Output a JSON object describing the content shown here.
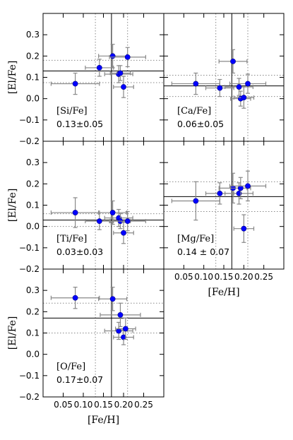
{
  "chart_data": {
    "type": "scatter",
    "xlabel": "[Fe/H]",
    "ylabel": "[El/Fe]",
    "xlim": [
      0.0,
      0.3
    ],
    "ylim": [
      -0.2,
      0.4
    ],
    "xticks": [
      0.05,
      0.1,
      0.15,
      0.2,
      0.25
    ],
    "xtick_labels": [
      "0.05",
      "0.10",
      "0.15",
      "0.20",
      "0.25"
    ],
    "yticks": [
      -0.2,
      -0.1,
      0.0,
      0.1,
      0.2,
      0.3
    ],
    "ytick_labels": [
      "−0.2",
      "−0.1",
      "0.0",
      "0.1",
      "0.2",
      "0.3"
    ],
    "panel_style": {
      "point_color": "#0000ff",
      "mean_line_color": "#000000",
      "dotted_line_color": "#888888",
      "errorbar_color": "#888888"
    },
    "panels": [
      {
        "element": "[Si/Fe]",
        "value_text": "0.13±0.05",
        "feh_mean": 0.17,
        "feh_dotted": [
          0.13,
          0.21
        ],
        "elfe_mean": 0.13,
        "elfe_dotted": [
          0.075,
          0.18
        ],
        "points": [
          {
            "x": 0.08,
            "y": 0.07,
            "xerr": 0.06,
            "yerr": 0.05
          },
          {
            "x": 0.14,
            "y": 0.145,
            "xerr": 0.035,
            "yerr": 0.04
          },
          {
            "x": 0.173,
            "y": 0.2,
            "xerr": 0.035,
            "yerr": 0.055
          },
          {
            "x": 0.188,
            "y": 0.115,
            "xerr": 0.035,
            "yerr": 0.04
          },
          {
            "x": 0.192,
            "y": 0.12,
            "xerr": 0.025,
            "yerr": 0.035
          },
          {
            "x": 0.2,
            "y": 0.055,
            "xerr": 0.025,
            "yerr": 0.05
          },
          {
            "x": 0.21,
            "y": 0.195,
            "xerr": 0.045,
            "yerr": 0.045
          }
        ]
      },
      {
        "element": "[Ca/Fe]",
        "value_text": "0.06±0.05",
        "feh_mean": 0.17,
        "feh_dotted": [
          0.13,
          0.21
        ],
        "elfe_mean": 0.06,
        "elfe_dotted": [
          0.01,
          0.11
        ],
        "points": [
          {
            "x": 0.08,
            "y": 0.07,
            "xerr": 0.06,
            "yerr": 0.05
          },
          {
            "x": 0.14,
            "y": 0.05,
            "xerr": 0.035,
            "yerr": 0.04
          },
          {
            "x": 0.173,
            "y": 0.175,
            "xerr": 0.035,
            "yerr": 0.055
          },
          {
            "x": 0.188,
            "y": 0.055,
            "xerr": 0.035,
            "yerr": 0.04
          },
          {
            "x": 0.192,
            "y": 0.0,
            "xerr": 0.025,
            "yerr": 0.035
          },
          {
            "x": 0.2,
            "y": 0.005,
            "xerr": 0.025,
            "yerr": 0.05
          },
          {
            "x": 0.21,
            "y": 0.07,
            "xerr": 0.045,
            "yerr": 0.045
          }
        ]
      },
      {
        "element": "[Ti/Fe]",
        "value_text": "0.03±0.03",
        "feh_mean": 0.17,
        "feh_dotted": [
          0.13,
          0.21
        ],
        "elfe_mean": 0.03,
        "elfe_dotted": [
          0.0,
          0.06
        ],
        "points": [
          {
            "x": 0.08,
            "y": 0.065,
            "xerr": 0.06,
            "yerr": 0.07
          },
          {
            "x": 0.14,
            "y": 0.025,
            "xerr": 0.035,
            "yerr": 0.04
          },
          {
            "x": 0.173,
            "y": 0.065,
            "xerr": 0.035,
            "yerr": 0.055
          },
          {
            "x": 0.188,
            "y": 0.04,
            "xerr": 0.035,
            "yerr": 0.04
          },
          {
            "x": 0.192,
            "y": 0.025,
            "xerr": 0.025,
            "yerr": 0.035
          },
          {
            "x": 0.2,
            "y": -0.03,
            "xerr": 0.025,
            "yerr": 0.05
          },
          {
            "x": 0.21,
            "y": 0.025,
            "xerr": 0.045,
            "yerr": 0.045
          }
        ]
      },
      {
        "element": "[Mg/Fe]",
        "value_text": "0.14 ± 0.07",
        "feh_mean": 0.17,
        "feh_dotted": [
          0.13,
          0.21
        ],
        "elfe_mean": 0.14,
        "elfe_dotted": [
          0.07,
          0.21
        ],
        "points": [
          {
            "x": 0.08,
            "y": 0.12,
            "xerr": 0.06,
            "yerr": 0.09
          },
          {
            "x": 0.14,
            "y": 0.155,
            "xerr": 0.035,
            "yerr": 0.05
          },
          {
            "x": 0.173,
            "y": 0.18,
            "xerr": 0.035,
            "yerr": 0.07
          },
          {
            "x": 0.188,
            "y": 0.155,
            "xerr": 0.035,
            "yerr": 0.05
          },
          {
            "x": 0.192,
            "y": 0.18,
            "xerr": 0.025,
            "yerr": 0.05
          },
          {
            "x": 0.2,
            "y": -0.01,
            "xerr": 0.025,
            "yerr": 0.065
          },
          {
            "x": 0.21,
            "y": 0.19,
            "xerr": 0.045,
            "yerr": 0.07
          }
        ]
      },
      {
        "element": "[O/Fe]",
        "value_text": "0.17±0.07",
        "feh_mean": 0.17,
        "feh_dotted": [
          0.13,
          0.21
        ],
        "elfe_mean": 0.17,
        "elfe_dotted": [
          0.1,
          0.24
        ],
        "points": [
          {
            "x": 0.08,
            "y": 0.265,
            "xerr": 0.06,
            "yerr": 0.05
          },
          {
            "x": 0.173,
            "y": 0.26,
            "xerr": 0.035,
            "yerr": 0.055
          },
          {
            "x": 0.188,
            "y": 0.11,
            "xerr": 0.035,
            "yerr": 0.04
          },
          {
            "x": 0.192,
            "y": 0.185,
            "xerr": 0.05,
            "yerr": 0.055
          },
          {
            "x": 0.2,
            "y": 0.08,
            "xerr": 0.025,
            "yerr": 0.035
          },
          {
            "x": 0.205,
            "y": 0.12,
            "xerr": 0.025,
            "yerr": 0.05
          }
        ]
      }
    ]
  }
}
